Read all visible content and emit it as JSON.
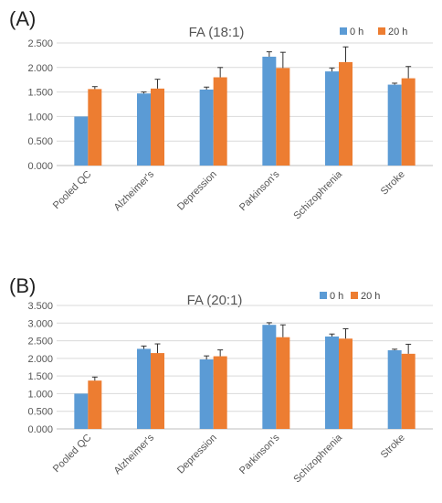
{
  "figure": {
    "colors": {
      "0h": "#5b9bd5",
      "20h": "#ed7d31",
      "grid": "#d9d9d9",
      "error": "#333333"
    }
  },
  "chart_data": [
    {
      "panel_label": "(A)",
      "type": "bar",
      "title": "FA (18:1)",
      "categories": [
        "Pooled QC",
        "Alzheimer's",
        "Depression",
        "Parkinson's",
        "Schizophrenia",
        "Stroke"
      ],
      "series": [
        {
          "name": "0 h",
          "values": [
            1.0,
            1.47,
            1.55,
            2.22,
            1.92,
            1.65
          ],
          "errors": [
            0.0,
            0.03,
            0.05,
            0.1,
            0.07,
            0.03
          ]
        },
        {
          "name": "20 h",
          "values": [
            1.56,
            1.57,
            1.8,
            1.99,
            2.11,
            1.78
          ],
          "errors": [
            0.05,
            0.19,
            0.2,
            0.32,
            0.31,
            0.24
          ]
        }
      ],
      "yticks": [
        "0.000",
        "0.500",
        "1.000",
        "1.500",
        "2.000",
        "2.500"
      ],
      "ylim": [
        0,
        2.5
      ],
      "grid": true,
      "legend": "top-right"
    },
    {
      "panel_label": "(B)",
      "type": "bar",
      "title": "FA (20:1)",
      "categories": [
        "Pooled QC",
        "Alzheimer's",
        "Depression",
        "Parkinson's",
        "Schizophrenia",
        "Stroke"
      ],
      "series": [
        {
          "name": "0 h",
          "values": [
            1.0,
            2.27,
            1.97,
            2.95,
            2.62,
            2.23
          ],
          "errors": [
            0.0,
            0.08,
            0.1,
            0.06,
            0.07,
            0.03
          ]
        },
        {
          "name": "20 h",
          "values": [
            1.37,
            2.15,
            2.06,
            2.6,
            2.56,
            2.13
          ],
          "errors": [
            0.1,
            0.26,
            0.18,
            0.35,
            0.28,
            0.27
          ]
        }
      ],
      "yticks": [
        "0.000",
        "0.500",
        "1.000",
        "1.500",
        "2.000",
        "2.500",
        "3.000",
        "3.500"
      ],
      "ylim": [
        0,
        3.5
      ],
      "grid": true,
      "legend": "top-right"
    }
  ]
}
